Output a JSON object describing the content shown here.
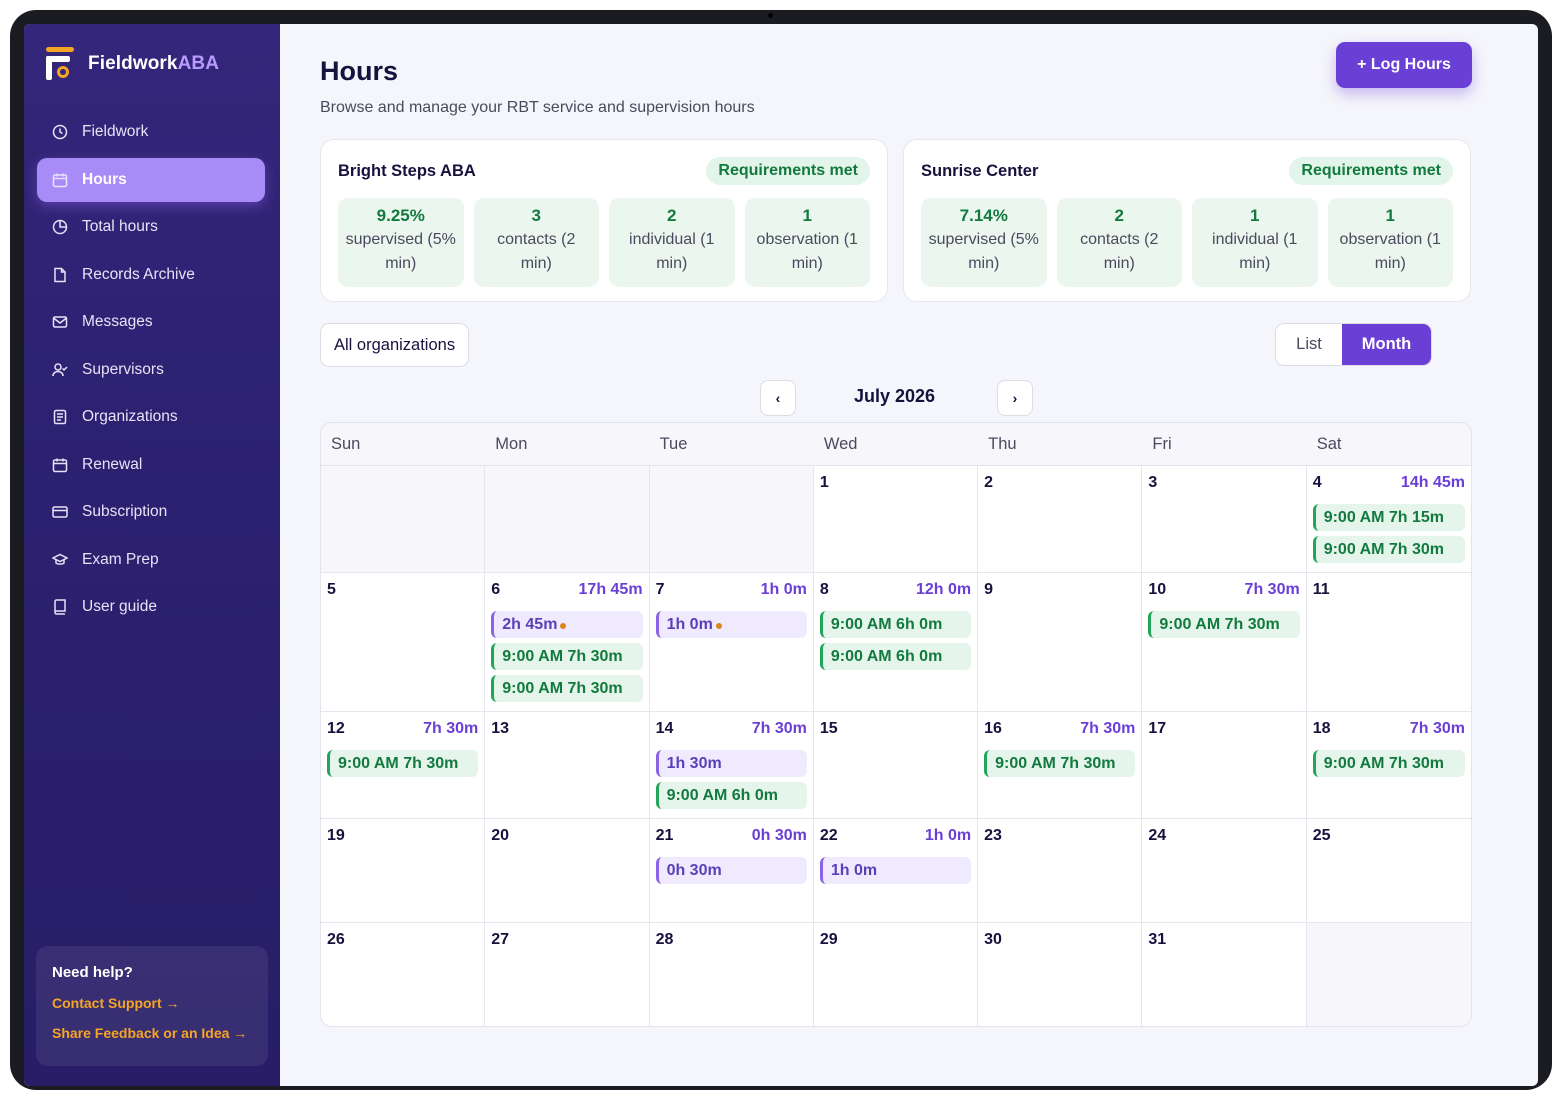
{
  "brand": {
    "name_a": "Fieldwork",
    "name_b": "ABA"
  },
  "nav": [
    {
      "label": "Fieldwork",
      "icon": "clock-icon"
    },
    {
      "label": "Hours",
      "icon": "calendar-icon",
      "active": true
    },
    {
      "label": "Total hours",
      "icon": "pie-chart-icon"
    },
    {
      "label": "Records Archive",
      "icon": "file-icon"
    },
    {
      "label": "Messages",
      "icon": "mail-icon"
    },
    {
      "label": "Supervisors",
      "icon": "user-check-icon"
    },
    {
      "label": "Organizations",
      "icon": "clipboard-icon"
    },
    {
      "label": "Renewal",
      "icon": "calendar-icon"
    },
    {
      "label": "Subscription",
      "icon": "credit-card-icon"
    },
    {
      "label": "Exam Prep",
      "icon": "graduation-cap-icon"
    },
    {
      "label": "User guide",
      "icon": "book-icon"
    }
  ],
  "help": {
    "title": "Need help?",
    "contact": "Contact Support →",
    "feedback": "Share Feedback or an Idea →"
  },
  "header": {
    "title": "Hours",
    "subtitle": "Browse and manage your RBT service and supervision hours",
    "log_button": "+ Log Hours"
  },
  "summaries": [
    {
      "org": "Bright Steps ABA",
      "badge": "Requirements met",
      "stats": [
        {
          "value": "9.25%",
          "label": "supervised (5% min)"
        },
        {
          "value": "3",
          "label": "contacts (2 min)"
        },
        {
          "value": "2",
          "label": "individual (1 min)"
        },
        {
          "value": "1",
          "label": "observation (1 min)"
        }
      ]
    },
    {
      "org": "Sunrise Center",
      "badge": "Requirements met",
      "stats": [
        {
          "value": "7.14%",
          "label": "supervised (5% min)"
        },
        {
          "value": "2",
          "label": "contacts (2 min)"
        },
        {
          "value": "1",
          "label": "individual (1 min)"
        },
        {
          "value": "1",
          "label": "observation (1 min)"
        }
      ]
    }
  ],
  "filter": {
    "org_select": "All organizations"
  },
  "view_toggle": {
    "list": "List",
    "month": "Month",
    "selected": "Month"
  },
  "calendar": {
    "month_label": "July 2026",
    "prev": "‹",
    "next": "›",
    "weekdays": [
      "Sun",
      "Mon",
      "Tue",
      "Wed",
      "Thu",
      "Fri",
      "Sat"
    ],
    "weeks": [
      [
        {
          "day": ""
        },
        {
          "day": ""
        },
        {
          "day": ""
        },
        {
          "day": "1"
        },
        {
          "day": "2"
        },
        {
          "day": "3"
        },
        {
          "day": "4",
          "total": "14h 45m",
          "entries": [
            {
              "text": "9:00 AM 7h 15m",
              "kind": "green"
            },
            {
              "text": "9:00 AM 7h 30m",
              "kind": "green"
            }
          ]
        }
      ],
      [
        {
          "day": "5"
        },
        {
          "day": "6",
          "total": "17h 45m",
          "entries": [
            {
              "text": "2h 45m",
              "kind": "purple",
              "pending": true
            },
            {
              "text": "9:00 AM 7h 30m",
              "kind": "green"
            },
            {
              "text": "9:00 AM 7h 30m",
              "kind": "green"
            }
          ]
        },
        {
          "day": "7",
          "total": "1h 0m",
          "entries": [
            {
              "text": "1h 0m",
              "kind": "purple",
              "pending": true
            }
          ]
        },
        {
          "day": "8",
          "total": "12h 0m",
          "entries": [
            {
              "text": "9:00 AM 6h 0m",
              "kind": "green"
            },
            {
              "text": "9:00 AM 6h 0m",
              "kind": "green"
            }
          ]
        },
        {
          "day": "9"
        },
        {
          "day": "10",
          "total": "7h 30m",
          "entries": [
            {
              "text": "9:00 AM 7h 30m",
              "kind": "green"
            }
          ]
        },
        {
          "day": "11"
        }
      ],
      [
        {
          "day": "12",
          "total": "7h 30m",
          "entries": [
            {
              "text": "9:00 AM 7h 30m",
              "kind": "green"
            }
          ]
        },
        {
          "day": "13"
        },
        {
          "day": "14",
          "total": "7h 30m",
          "entries": [
            {
              "text": "1h 30m",
              "kind": "purple"
            },
            {
              "text": "9:00 AM 6h 0m",
              "kind": "green"
            }
          ]
        },
        {
          "day": "15"
        },
        {
          "day": "16",
          "total": "7h 30m",
          "entries": [
            {
              "text": "9:00 AM 7h 30m",
              "kind": "green"
            }
          ]
        },
        {
          "day": "17"
        },
        {
          "day": "18",
          "total": "7h 30m",
          "entries": [
            {
              "text": "9:00 AM 7h 30m",
              "kind": "green"
            }
          ]
        }
      ],
      [
        {
          "day": "19"
        },
        {
          "day": "20"
        },
        {
          "day": "21",
          "total": "0h 30m",
          "entries": [
            {
              "text": "0h 30m",
              "kind": "purple"
            }
          ]
        },
        {
          "day": "22",
          "total": "1h 0m",
          "entries": [
            {
              "text": "1h 0m",
              "kind": "purple"
            }
          ]
        },
        {
          "day": "23"
        },
        {
          "day": "24"
        },
        {
          "day": "25"
        }
      ],
      [
        {
          "day": "26"
        },
        {
          "day": "27"
        },
        {
          "day": "28"
        },
        {
          "day": "29"
        },
        {
          "day": "30"
        },
        {
          "day": "31"
        },
        {
          "day": ""
        }
      ]
    ]
  }
}
